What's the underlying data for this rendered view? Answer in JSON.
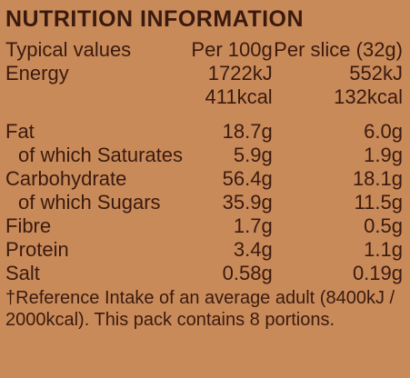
{
  "title": "NUTRITION INFORMATION",
  "headers": {
    "label": "Typical values",
    "per100": "Per 100g",
    "perslice": "Per slice (32g)"
  },
  "rows": {
    "energy": {
      "label": "Energy",
      "per100_kj": "1722kJ",
      "perslice_kj": "552kJ",
      "per100_kcal": "411kcal",
      "perslice_kcal": "132kcal"
    },
    "fat": {
      "label": "Fat",
      "per100": "18.7g",
      "perslice": "6.0g"
    },
    "saturates": {
      "label": "of which Saturates",
      "per100": "5.9g",
      "perslice": "1.9g"
    },
    "carbohydrate": {
      "label": "Carbohydrate",
      "per100": "56.4g",
      "perslice": "18.1g"
    },
    "sugars": {
      "label": "of which Sugars",
      "per100": "35.9g",
      "perslice": "11.5g"
    },
    "fibre": {
      "label": "Fibre",
      "per100": "1.7g",
      "perslice": "0.5g"
    },
    "protein": {
      "label": "Protein",
      "per100": "3.4g",
      "perslice": "1.1g"
    },
    "salt": {
      "label": "Salt",
      "per100": "0.58g",
      "perslice": "0.19g"
    }
  },
  "footnote": "†Reference Intake of an average adult (8400kJ / 2000kcal). This pack contains 8 portions."
}
